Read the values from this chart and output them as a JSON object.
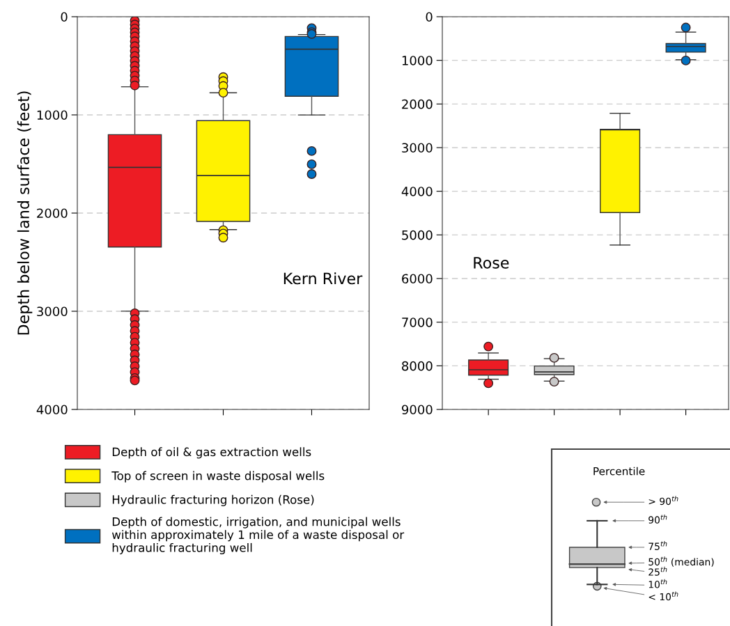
{
  "chart_data": [
    {
      "type": "box",
      "ylabel": "Depth below land surface (feet)",
      "annotations": [
        "Kern River"
      ],
      "categories": [
        null,
        null,
        null
      ],
      "ylim": [
        4000,
        0
      ],
      "yticks": [
        0,
        1000,
        2000,
        3000,
        4000
      ],
      "grid": "y",
      "series": [
        {
          "color": "#ed1c24",
          "boxes": [
            {
              "low": 714,
              "q1": 1201,
              "median": 1535,
              "q3": 2346,
              "high": 2999,
              "outliers": [
                40,
                80,
                120,
                160,
                200,
                250,
                300,
                350,
                400,
                450,
                500,
                550,
                600,
                650,
                700,
                3020,
                3080,
                3140,
                3200,
                3260,
                3320,
                3380,
                3440,
                3500,
                3560,
                3620,
                3680,
                3705
              ]
            },
            null,
            null
          ]
        },
        {
          "color": "#fff200",
          "boxes": [
            null,
            {
              "low": 775,
              "q1": 1059,
              "median": 1618,
              "q3": 2085,
              "high": 2168,
              "outliers": [
                615,
                656,
                706,
                774,
                2175,
                2208,
                2250
              ]
            },
            null
          ]
        },
        {
          "color": "#0070c0",
          "boxes": [
            null,
            null,
            {
              "low": 1001,
              "q1": 810,
              "median": 331,
              "q3": 201,
              "high": 182,
              "outliers": [
                116,
                157,
                176,
                1368,
                1503,
                1603
              ]
            }
          ]
        }
      ]
    },
    {
      "type": "box",
      "annotations": [
        "Rose"
      ],
      "categories": [
        null,
        null,
        null,
        null
      ],
      "ylim": [
        9000,
        0
      ],
      "yticks": [
        0,
        1000,
        2000,
        3000,
        4000,
        5000,
        6000,
        7000,
        8000,
        9000
      ],
      "grid": "y",
      "legend": "bottom",
      "series": [
        {
          "name": "Depth of oil & gas extraction wells",
          "color": "#ed1c24",
          "boxes": [
            {
              "low": 7706,
              "q1": 7867,
              "median": 8090,
              "q3": 8214,
              "high": 8307,
              "outliers": [
                7557,
                8400
              ]
            },
            null,
            null,
            null
          ]
        },
        {
          "name": "Top of screen in waste disposal wells",
          "color": "#fff200",
          "boxes": [
            null,
            null,
            {
              "low": 2213,
              "q1": 2579,
              "median": 2591,
              "q3": 4488,
              "high": 5232
            },
            null
          ]
        },
        {
          "name": "Hydraulic fracturing horizon (Rose)",
          "color": "#c8c8c8",
          "boxes": [
            null,
            {
              "low": 7836,
              "q1": 8004,
              "median": 8140,
              "q3": 8202,
              "high": 8351,
              "outliers": [
                7818,
                8363
              ]
            },
            null,
            null
          ]
        },
        {
          "name": "Depth of domestic, irrigation, and municipal wells\nwithin approximately 1 mile of a waste disposal or\nhydraulic fracturing well",
          "color": "#0070c0",
          "boxes": [
            null,
            null,
            null,
            {
              "low": 353,
              "q1": 614,
              "median": 682,
              "q3": 812,
              "high": 986,
              "outliers": [
                248,
                1004
              ]
            }
          ]
        }
      ]
    },
    {
      "type": "other",
      "title": "Percentile",
      "annotations": [
        "> 90$^{th}$",
        "90$^{th}$",
        "75$^{th}$",
        "50$^{th}$ (median)",
        "25$^{th}$",
        "10$^{th}$",
        "< 10$^{th}$"
      ]
    }
  ]
}
